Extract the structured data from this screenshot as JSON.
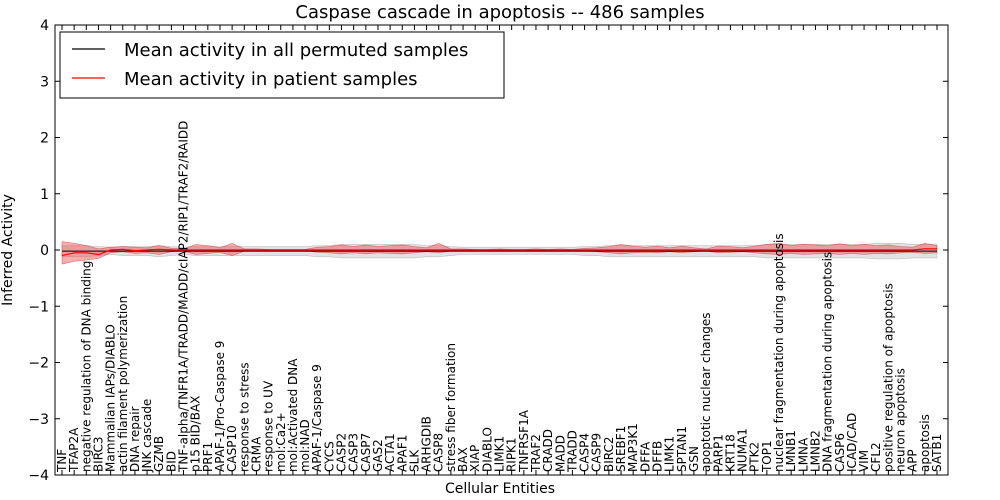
{
  "chart_data": {
    "type": "line",
    "title": "Caspase cascade in apoptosis -- 486 samples",
    "xlabel": "Cellular Entities",
    "ylabel": "Inferred Activity",
    "ylim": [
      -4,
      4
    ],
    "yticks": [
      -4,
      -3,
      -2,
      -1,
      0,
      1,
      2,
      3,
      4
    ],
    "grid": false,
    "legend_position": "top-left",
    "categories": [
      "TNF",
      "TFAP2A",
      "negative regulation of DNA binding",
      "BIRC3",
      "Mammalian IAPs/DIABLO",
      "actin filament polymerization",
      "DNA repair",
      "JNK cascade",
      "GZMB",
      "BID",
      "TNF-alpha/TNFR1A/TRADD/MADD/cIAP2/RIP1/TRAF2/RAIDD",
      "p15 BID/BAX",
      "PRF1",
      "APAF-1/Pro-Caspase 9",
      "CASP10",
      "response to stress",
      "CRMA",
      "response to UV",
      "mol:Ca2+",
      "mol:Activated DNA",
      "mol:NAD",
      "APAF-1/Caspase 9",
      "CYCS",
      "CASP2",
      "CASP3",
      "CASP7",
      "GAS2",
      "ACTA1",
      "APAF1",
      "SLK",
      "ARHGDIB",
      "CASP8",
      "stress fiber formation",
      "BAX",
      "XIAP",
      "DIABLO",
      "LIMK1",
      "RIPK1",
      "TNFRSF1A",
      "TRAF2",
      "CRADD",
      "MADD",
      "TRADD",
      "CASP4",
      "CASP9",
      "BIRC2",
      "SREBF1",
      "MAP3K1",
      "DFFA",
      "DFFB",
      "LIMK1",
      "SPTAN1",
      "GSN",
      "apoptotic nuclear changes",
      "PARP1",
      "KRT18",
      "NUMA1",
      "PTK2",
      "TOP1",
      "nuclear fragmentation during apoptosis",
      "LMNB1",
      "LMNA",
      "LMNB2",
      "DNA fragmentation during apoptosis",
      "CASP6",
      "ICAD/CAD",
      "VIM",
      "CFL2",
      "positive regulation of apoptosis",
      "neuron apoptosis",
      "APP",
      "apoptosis",
      "SATB1"
    ],
    "series": [
      {
        "name": "Mean activity in all permuted samples",
        "color": "#000000",
        "values": [
          -0.02,
          -0.02,
          -0.02,
          -0.02,
          -0.02,
          -0.02,
          -0.02,
          -0.02,
          -0.02,
          -0.02,
          -0.02,
          -0.02,
          -0.02,
          -0.02,
          -0.02,
          -0.02,
          -0.02,
          -0.02,
          -0.02,
          -0.02,
          -0.02,
          -0.02,
          -0.02,
          -0.02,
          -0.02,
          -0.02,
          -0.02,
          -0.02,
          -0.02,
          -0.02,
          -0.02,
          -0.02,
          -0.02,
          -0.02,
          -0.02,
          -0.02,
          -0.02,
          -0.02,
          -0.02,
          -0.02,
          -0.02,
          -0.02,
          -0.02,
          -0.02,
          -0.02,
          -0.02,
          -0.02,
          -0.02,
          -0.02,
          -0.02,
          -0.02,
          -0.02,
          -0.02,
          -0.02,
          -0.02,
          -0.02,
          -0.02,
          -0.02,
          -0.02,
          -0.02,
          -0.02,
          -0.02,
          -0.02,
          -0.02,
          -0.02,
          -0.02,
          -0.02,
          -0.02,
          -0.02,
          -0.02,
          -0.02,
          -0.02,
          -0.02
        ],
        "band_lower": [
          -0.12,
          -0.12,
          -0.12,
          -0.1,
          -0.08,
          -0.1,
          -0.1,
          -0.1,
          -0.12,
          -0.1,
          -0.08,
          -0.1,
          -0.1,
          -0.1,
          -0.1,
          -0.1,
          -0.1,
          -0.1,
          -0.1,
          -0.1,
          -0.1,
          -0.12,
          -0.12,
          -0.14,
          -0.14,
          -0.14,
          -0.14,
          -0.14,
          -0.14,
          -0.14,
          -0.12,
          -0.12,
          -0.1,
          -0.08,
          -0.08,
          -0.08,
          -0.08,
          -0.08,
          -0.08,
          -0.08,
          -0.08,
          -0.08,
          -0.08,
          -0.1,
          -0.1,
          -0.12,
          -0.12,
          -0.12,
          -0.12,
          -0.12,
          -0.12,
          -0.12,
          -0.12,
          -0.12,
          -0.12,
          -0.12,
          -0.12,
          -0.12,
          -0.14,
          -0.14,
          -0.14,
          -0.14,
          -0.14,
          -0.14,
          -0.14,
          -0.14,
          -0.14,
          -0.16,
          -0.16,
          -0.16,
          -0.14,
          -0.14,
          -0.14
        ],
        "band_upper": [
          0.08,
          0.08,
          0.08,
          0.06,
          0.05,
          0.06,
          0.06,
          0.06,
          0.08,
          0.06,
          0.05,
          0.06,
          0.06,
          0.06,
          0.06,
          0.06,
          0.06,
          0.06,
          0.06,
          0.06,
          0.06,
          0.08,
          0.08,
          0.1,
          0.1,
          0.1,
          0.1,
          0.1,
          0.1,
          0.1,
          0.08,
          0.08,
          0.06,
          0.05,
          0.05,
          0.05,
          0.05,
          0.05,
          0.05,
          0.05,
          0.05,
          0.05,
          0.05,
          0.06,
          0.06,
          0.08,
          0.08,
          0.08,
          0.08,
          0.08,
          0.08,
          0.08,
          0.08,
          0.08,
          0.08,
          0.08,
          0.08,
          0.08,
          0.1,
          0.1,
          0.1,
          0.1,
          0.1,
          0.1,
          0.1,
          0.1,
          0.1,
          0.12,
          0.12,
          0.12,
          0.1,
          0.1,
          0.1
        ]
      },
      {
        "name": "Mean activity in patient samples",
        "color": "#ff0000",
        "values": [
          -0.1,
          -0.05,
          -0.05,
          -0.08,
          0.0,
          0.01,
          -0.01,
          0.0,
          0.01,
          0.0,
          0.0,
          0.0,
          0.0,
          0.0,
          0.0,
          0.0,
          0.0,
          0.0,
          0.0,
          0.0,
          0.0,
          0.0,
          0.0,
          0.0,
          0.0,
          0.0,
          0.0,
          0.0,
          0.0,
          0.0,
          0.0,
          0.0,
          0.0,
          0.0,
          0.0,
          0.0,
          0.0,
          0.0,
          0.0,
          0.0,
          0.0,
          0.0,
          0.0,
          0.0,
          0.0,
          0.0,
          0.0,
          0.0,
          0.0,
          0.0,
          0.0,
          0.0,
          0.0,
          0.0,
          0.0,
          0.0,
          0.0,
          0.0,
          0.0,
          0.0,
          0.0,
          0.0,
          0.0,
          0.0,
          0.0,
          0.0,
          0.0,
          0.0,
          0.0,
          0.0,
          0.0,
          0.02,
          0.02
        ],
        "band_lower": [
          -0.25,
          -0.2,
          -0.18,
          -0.15,
          -0.05,
          -0.03,
          -0.06,
          -0.05,
          -0.08,
          -0.03,
          -0.02,
          -0.08,
          -0.06,
          -0.04,
          -0.1,
          -0.02,
          -0.02,
          -0.01,
          -0.01,
          -0.01,
          -0.01,
          -0.04,
          -0.05,
          -0.07,
          -0.05,
          -0.07,
          -0.05,
          -0.06,
          -0.07,
          -0.05,
          -0.03,
          -0.05,
          -0.02,
          -0.02,
          -0.01,
          -0.01,
          -0.02,
          -0.01,
          -0.01,
          -0.02,
          -0.01,
          -0.02,
          -0.01,
          -0.02,
          -0.03,
          -0.05,
          -0.07,
          -0.05,
          -0.04,
          -0.05,
          -0.03,
          -0.05,
          -0.03,
          -0.02,
          -0.05,
          -0.04,
          -0.03,
          -0.05,
          -0.07,
          -0.08,
          -0.06,
          -0.08,
          -0.07,
          -0.06,
          -0.08,
          -0.06,
          -0.08,
          -0.06,
          -0.07,
          -0.05,
          -0.04,
          -0.06,
          -0.05
        ],
        "band_upper": [
          0.15,
          0.12,
          0.08,
          0.02,
          0.05,
          0.06,
          0.05,
          0.04,
          0.08,
          0.03,
          0.02,
          0.1,
          0.08,
          0.04,
          0.12,
          0.02,
          0.02,
          0.01,
          0.01,
          0.01,
          0.01,
          0.05,
          0.06,
          0.09,
          0.06,
          0.09,
          0.06,
          0.08,
          0.09,
          0.06,
          0.04,
          0.12,
          0.02,
          0.02,
          0.01,
          0.01,
          0.02,
          0.01,
          0.01,
          0.02,
          0.01,
          0.02,
          0.01,
          0.03,
          0.04,
          0.06,
          0.1,
          0.07,
          0.05,
          0.07,
          0.04,
          0.07,
          0.04,
          0.02,
          0.07,
          0.06,
          0.04,
          0.07,
          0.1,
          0.12,
          0.08,
          0.1,
          0.09,
          0.08,
          0.11,
          0.08,
          0.1,
          0.08,
          0.09,
          0.06,
          0.05,
          0.12,
          0.08
        ]
      }
    ]
  }
}
